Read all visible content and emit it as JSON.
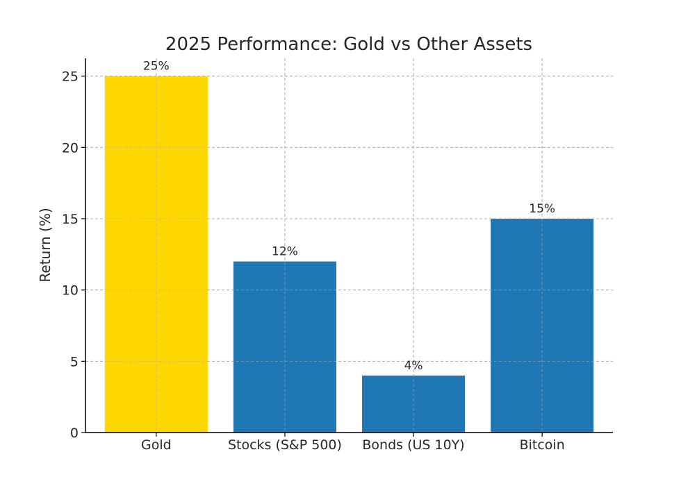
{
  "chart_data": {
    "type": "bar",
    "title": "2025 Performance: Gold vs Other Assets",
    "xlabel": "",
    "ylabel": "Return (%)",
    "ylim": [
      0,
      26.25
    ],
    "yticks": [
      0,
      5,
      10,
      15,
      20,
      25
    ],
    "grid": true,
    "categories": [
      "Gold",
      "Stocks (S&P 500)",
      "Bonds (US 10Y)",
      "Bitcoin"
    ],
    "values": [
      25,
      12,
      4,
      15
    ],
    "data_labels": [
      "25%",
      "12%",
      "4%",
      "15%"
    ],
    "colors": [
      "#FFD700",
      "#1F77B4",
      "#1F77B4",
      "#1F77B4"
    ]
  }
}
